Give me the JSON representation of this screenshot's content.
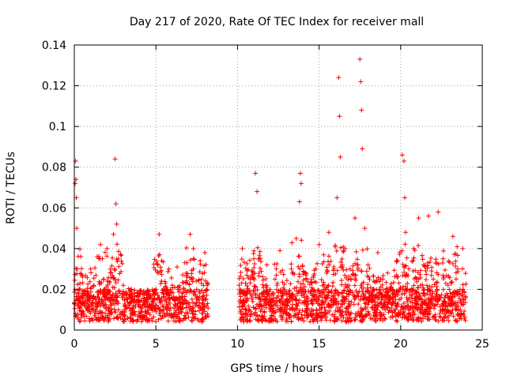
{
  "chart_data": {
    "type": "scatter",
    "title": "Day 217 of 2020, Rate Of TEC Index for receiver mall",
    "xlabel": "GPS time / hours",
    "ylabel": "ROTI / TECUs",
    "xlim": [
      0,
      25
    ],
    "ylim": [
      0,
      0.14
    ],
    "x_ticks": [
      0,
      5,
      10,
      15,
      20,
      25
    ],
    "x_tick_labels": [
      "0",
      "5",
      "10",
      "15",
      "20",
      "25"
    ],
    "y_ticks": [
      0,
      0.02,
      0.04,
      0.06,
      0.08,
      0.1,
      0.12,
      0.14
    ],
    "y_tick_labels": [
      "0",
      "0.02",
      "0.04",
      "0.06",
      "0.08",
      "0.1",
      "0.12",
      "0.14"
    ],
    "grid": true,
    "marker": "+",
    "color": "#ff0000",
    "data_gap_hours": [
      8.2,
      10.1
    ],
    "series": [
      {
        "name": "ROTI",
        "x": [
          0.0,
          0.05,
          0.08,
          0.1,
          0.12,
          0.15,
          0.18,
          0.2,
          0.22,
          0.25,
          0.3,
          0.35,
          0.4,
          0.5,
          0.6,
          0.8,
          1.0,
          1.2,
          1.4,
          1.6,
          1.8,
          2.0,
          2.2,
          2.4,
          2.5,
          2.55,
          2.6,
          2.7,
          2.8,
          3.0,
          3.2,
          3.5,
          3.8,
          4.0,
          4.3,
          4.6,
          5.0,
          5.2,
          5.5,
          5.8,
          6.0,
          6.3,
          6.6,
          6.9,
          7.1,
          7.3,
          7.5,
          7.8,
          8.0,
          8.1,
          10.1,
          10.3,
          10.5,
          10.8,
          11.0,
          11.1,
          11.2,
          11.5,
          11.8,
          12.0,
          12.3,
          12.6,
          13.0,
          13.3,
          13.6,
          13.8,
          13.85,
          13.9,
          14.2,
          14.5,
          14.8,
          15.0,
          15.3,
          15.6,
          15.9,
          16.1,
          16.2,
          16.25,
          16.3,
          16.6,
          16.9,
          17.2,
          17.5,
          17.55,
          17.6,
          17.65,
          17.8,
          18.0,
          18.3,
          18.6,
          18.9,
          19.2,
          19.5,
          19.8,
          20.1,
          20.2,
          20.25,
          20.3,
          20.5,
          20.8,
          21.1,
          21.4,
          21.7,
          22.0,
          22.3,
          22.6,
          22.9,
          23.2,
          23.5,
          23.8
        ],
        "y": [
          0.013,
          0.072,
          0.083,
          0.074,
          0.065,
          0.05,
          0.03,
          0.018,
          0.012,
          0.015,
          0.02,
          0.011,
          0.014,
          0.018,
          0.012,
          0.016,
          0.03,
          0.022,
          0.036,
          0.042,
          0.025,
          0.04,
          0.028,
          0.047,
          0.084,
          0.062,
          0.052,
          0.035,
          0.018,
          0.022,
          0.016,
          0.02,
          0.014,
          0.018,
          0.012,
          0.016,
          0.02,
          0.047,
          0.018,
          0.03,
          0.022,
          0.031,
          0.018,
          0.026,
          0.047,
          0.04,
          0.02,
          0.025,
          0.038,
          0.012,
          0.022,
          0.04,
          0.018,
          0.025,
          0.035,
          0.077,
          0.068,
          0.018,
          0.032,
          0.02,
          0.025,
          0.039,
          0.018,
          0.03,
          0.045,
          0.063,
          0.077,
          0.072,
          0.025,
          0.018,
          0.03,
          0.042,
          0.02,
          0.048,
          0.03,
          0.065,
          0.124,
          0.105,
          0.085,
          0.04,
          0.03,
          0.055,
          0.133,
          0.122,
          0.108,
          0.089,
          0.05,
          0.032,
          0.02,
          0.038,
          0.025,
          0.028,
          0.018,
          0.034,
          0.086,
          0.083,
          0.065,
          0.048,
          0.03,
          0.04,
          0.055,
          0.032,
          0.056,
          0.025,
          0.058,
          0.035,
          0.022,
          0.046,
          0.03,
          0.04
        ]
      }
    ]
  }
}
